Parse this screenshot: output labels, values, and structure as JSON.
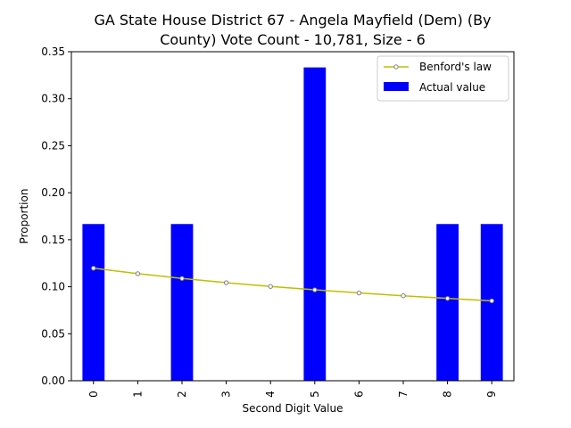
{
  "chart_data": {
    "type": "bar",
    "title_line1": "GA State House District 67 - Angela Mayfield (Dem) (By",
    "title_line2": "County) Vote Count - 10,781, Size - 6",
    "xlabel": "Second Digit Value",
    "ylabel": "Proportion",
    "categories": [
      "0",
      "1",
      "2",
      "3",
      "4",
      "5",
      "6",
      "7",
      "8",
      "9"
    ],
    "ylim": [
      0,
      0.35
    ],
    "yticks": [
      "0.00",
      "0.05",
      "0.10",
      "0.15",
      "0.20",
      "0.25",
      "0.30",
      "0.35"
    ],
    "legend_position": "top-right",
    "series": [
      {
        "name": "Actual value",
        "kind": "bar",
        "color": "#0000ff",
        "values": [
          0.1667,
          0,
          0.1667,
          0,
          0,
          0.3333,
          0,
          0,
          0.1667,
          0.1667
        ]
      },
      {
        "name": "Benford's law",
        "kind": "line",
        "color": "#bfbf00",
        "values": [
          0.1197,
          0.1139,
          0.1088,
          0.1043,
          0.1003,
          0.0967,
          0.0934,
          0.0904,
          0.0876,
          0.085
        ]
      }
    ]
  }
}
